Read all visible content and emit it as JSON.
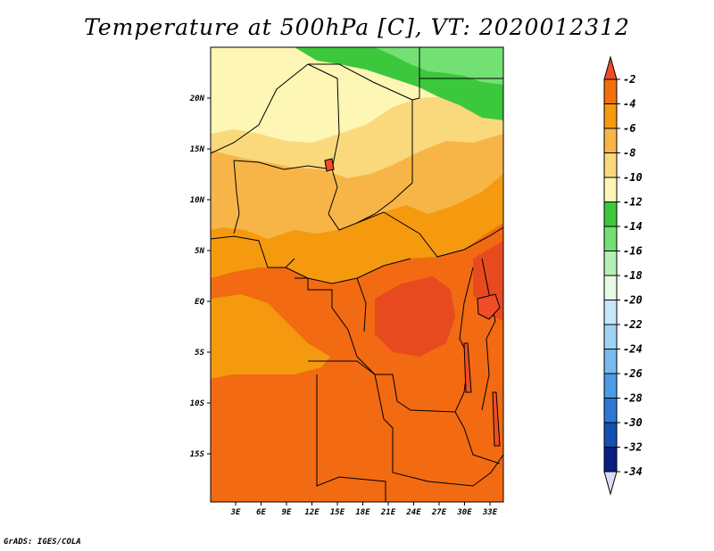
{
  "title": "Temperature at 500hPa [C], VT: 2020012312",
  "footer": "GrADS: IGES/COLA",
  "map": {
    "region": "Central Africa",
    "variable": "Temperature at 500hPa",
    "units": "C",
    "valid_time": "2020012312",
    "lat_ticks": [
      "20N",
      "15N",
      "10N",
      "5N",
      "EQ",
      "5S",
      "10S",
      "15S"
    ],
    "lon_ticks": [
      "3E",
      "6E",
      "9E",
      "12E",
      "15E",
      "18E",
      "21E",
      "24E",
      "27E",
      "30E",
      "33E"
    ]
  },
  "colorbar": {
    "levels": [
      "-2",
      "-4",
      "-6",
      "-8",
      "-10",
      "-12",
      "-14",
      "-16",
      "-18",
      "-20",
      "-22",
      "-24",
      "-26",
      "-28",
      "-30",
      "-32",
      "-34"
    ],
    "colors": [
      "#ef4c28",
      "#f46e0e",
      "#f59a0e",
      "#f7b547",
      "#fad97d",
      "#fef6b4",
      "#3cc83c",
      "#73e073",
      "#b4f0b4",
      "#e6fae6",
      "#c8e6fa",
      "#a0d2f5",
      "#78b9f0",
      "#4b9be6",
      "#2d78d7",
      "#1450b4",
      "#0a1e82",
      "#dcdcf5"
    ]
  },
  "colors": {
    "deep_red": "#e84a1f",
    "red_orange": "#f26a12",
    "orange": "#f59a0e",
    "light_orange": "#f7b547",
    "yellow": "#fad97d",
    "pale_yellow": "#fef6b4",
    "green": "#3cc83c",
    "light_green": "#73e073",
    "pale_green": "#b4f0b4"
  }
}
